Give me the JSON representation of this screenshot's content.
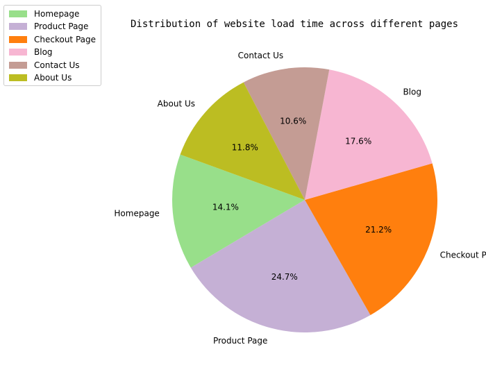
{
  "chart_data": {
    "type": "pie",
    "title": "Distribution of website load time across different pages",
    "categories": [
      "Homepage",
      "Product Page",
      "Checkout Page",
      "Blog",
      "Contact Us",
      "About Us"
    ],
    "values": [
      14.1,
      24.7,
      21.2,
      17.6,
      10.6,
      11.8
    ],
    "pct_labels": [
      "14.1%",
      "24.7%",
      "21.2%",
      "17.6%",
      "10.6%",
      "11.8%"
    ],
    "colors": [
      "#98df8a",
      "#c5b0d5",
      "#ff7f0e",
      "#f7b6d2",
      "#c49c94",
      "#bcbd22"
    ],
    "start_angle_deg": 160,
    "direction": "counterclockwise",
    "legend_position": "top-left"
  }
}
